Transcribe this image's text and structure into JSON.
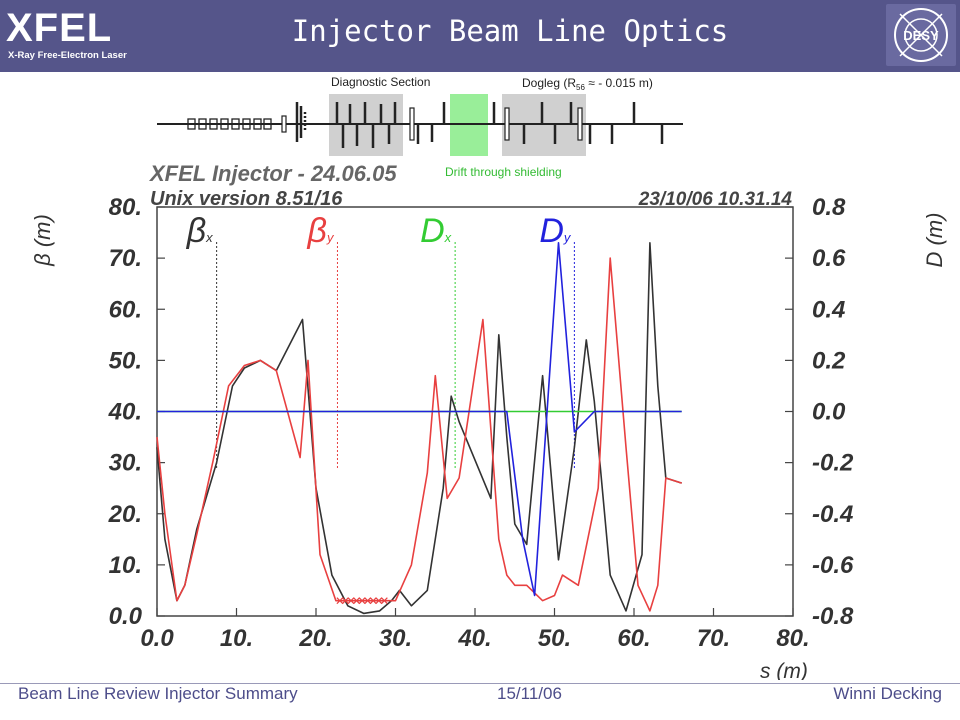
{
  "header": {
    "title": "Injector Beam Line Optics",
    "logo_text": "XFEL",
    "logo_subtitle": "X-Ray Free-Electron Laser",
    "desy_logo": "DESY"
  },
  "lattice": {
    "diagnostic_label": "Diagnostic Section",
    "dogleg_label_prefix": "Dogleg (R",
    "dogleg_label_sub": "56",
    "dogleg_label_suffix": " ≈ - 0.015 m)",
    "drift_label": "Drift through shielding"
  },
  "plot_header": {
    "line1": "XFEL Injector - 24.06.05",
    "line2": "Unix version 8.51/16",
    "stamp": "23/10/06   10.31.14"
  },
  "footer": {
    "left": "Beam Line Review Injector Summary",
    "center": "15/11/06",
    "right": "Winni Decking"
  },
  "colors": {
    "header_bg": "#55558a",
    "beta_x": "#333333",
    "beta_y": "#e84040",
    "dx": "#33cc33",
    "dy": "#2222dd",
    "drift": "#99ee99"
  },
  "chart_data": {
    "type": "line",
    "xlabel": "s (m)",
    "ylabel": "β (m)",
    "y2label": "D (m)",
    "xlim": [
      0,
      80
    ],
    "ylim": [
      0,
      80
    ],
    "y2lim": [
      -0.8,
      0.8
    ],
    "x_ticks": [
      "0.0",
      "10.",
      "20.",
      "30.",
      "40.",
      "50.",
      "60.",
      "70.",
      "80."
    ],
    "y_ticks": [
      "0.0",
      "10.",
      "20.",
      "30.",
      "40.",
      "50.",
      "60.",
      "70.",
      "80."
    ],
    "y2_ticks": [
      "-0.8",
      "-0.6",
      "-0.4",
      "-0.2",
      "0.0",
      "0.2",
      "0.4",
      "0.6",
      "0.8"
    ],
    "legend": [
      {
        "sym": "β",
        "sub": "x",
        "color": "#333333",
        "x": 7.5
      },
      {
        "sym": "β",
        "sub": "y",
        "color": "#e84040",
        "x": 22.7
      },
      {
        "sym": "D",
        "sub": "x",
        "color": "#33cc33",
        "x": 37.5
      },
      {
        "sym": "D",
        "sub": "y",
        "color": "#2222dd",
        "x": 52.5
      }
    ],
    "series": [
      {
        "name": "β",
        "sub": "x",
        "axis": "left",
        "color": "#333333",
        "x": [
          0,
          1,
          2.5,
          3.5,
          5,
          7.5,
          9.5,
          11,
          13,
          15,
          18.3,
          20,
          22,
          24,
          26,
          28,
          29.5,
          30.5,
          32,
          34,
          36,
          37,
          38,
          42,
          43,
          44,
          45,
          46.5,
          48.5,
          50.5,
          52.5,
          54,
          55,
          57,
          59,
          61,
          62,
          63,
          64,
          66
        ],
        "y": [
          33,
          15,
          3,
          6,
          17,
          30,
          45,
          48.5,
          50,
          48,
          58,
          25,
          8,
          2,
          0.5,
          1,
          3,
          5,
          2,
          5,
          25,
          43,
          38,
          23,
          55,
          35,
          18,
          14,
          47,
          11,
          33,
          54,
          42,
          8,
          1,
          12,
          73,
          45,
          27,
          26
        ]
      },
      {
        "name": "β",
        "sub": "y",
        "axis": "left",
        "color": "#e84040",
        "x": [
          0,
          1,
          2.5,
          3.5,
          5,
          7,
          9,
          11,
          13,
          15,
          18,
          19,
          20.5,
          22.5,
          23,
          30,
          32,
          34,
          35,
          36.5,
          38,
          41,
          43,
          44,
          45,
          46.5,
          48.5,
          50,
          51,
          53,
          55.5,
          57,
          59,
          60.5,
          62,
          63,
          64,
          66
        ],
        "y": [
          35,
          20,
          3,
          6,
          16,
          30,
          45,
          49,
          50,
          48,
          31,
          50,
          12,
          3,
          3,
          3,
          10,
          28,
          47,
          23,
          27,
          58,
          15,
          8,
          6,
          6,
          3,
          4,
          8,
          6,
          25,
          70,
          33,
          6,
          1,
          6,
          27,
          26
        ]
      },
      {
        "name": "D",
        "sub": "x",
        "axis": "right",
        "color": "#33cc33",
        "x": [
          0,
          66
        ],
        "y": [
          0,
          0
        ]
      },
      {
        "name": "D",
        "sub": "y",
        "axis": "right",
        "color": "#2222dd",
        "x": [
          0,
          44,
          46,
          47.5,
          50.5,
          52.5,
          55,
          66
        ],
        "y": [
          0,
          0,
          -0.5,
          -0.72,
          0.66,
          -0.08,
          0,
          0
        ]
      }
    ]
  }
}
